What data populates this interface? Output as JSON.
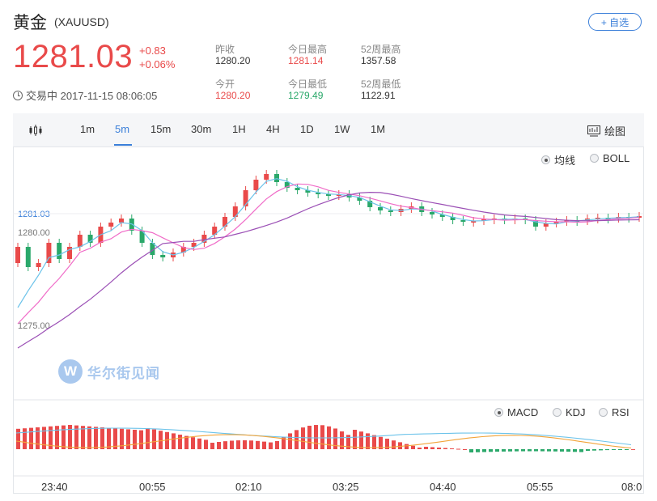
{
  "header": {
    "title": "黄金",
    "code": "(XAUUSD)",
    "follow_label": "+ 自选"
  },
  "quote": {
    "price": "1281.03",
    "change": "+0.83",
    "change_pct": "+0.06%",
    "status": "交易中 2017-11-15 08:06:05"
  },
  "stats": {
    "prev_close_label": "昨收",
    "prev_close": "1280.20",
    "high_label": "今日最高",
    "high": "1281.14",
    "w52_high_label": "52周最高",
    "w52_high": "1357.58",
    "open_label": "今开",
    "open": "1280.20",
    "low_label": "今日最低",
    "low": "1279.49",
    "w52_low_label": "52周最低",
    "w52_low": "1122.91"
  },
  "toolbar": {
    "tabs": [
      "1m",
      "5m",
      "15m",
      "30m",
      "1H",
      "4H",
      "1D",
      "1W",
      "1M"
    ],
    "active_tab": "5m",
    "draw_label": "绘图"
  },
  "main_chart": {
    "overlays": [
      "均线",
      "BOLL"
    ],
    "selected_overlay": "均线",
    "y_labels": [
      "1281.03",
      "1280.00",
      "1275.00"
    ]
  },
  "indicator_chart": {
    "options": [
      "MACD",
      "KDJ",
      "RSI"
    ],
    "selected": "MACD"
  },
  "watermark": {
    "text": "华尔街见闻",
    "logo_letter": "W"
  },
  "chart_data": {
    "type": "candlestick",
    "x_tick_labels": [
      "23:40",
      "00:55",
      "02:10",
      "03:25",
      "04:40",
      "05:55",
      "08:0"
    ],
    "y_ticks": [
      1281.03,
      1280.0,
      1275.0
    ],
    "current_price": 1281.03,
    "colors": {
      "up": "#e94a4a",
      "down": "#2aa86a",
      "ma_short": "#6cc3ea",
      "ma_mid": "#f06cc8",
      "ma_long": "#9b4fb5",
      "macd_dif": "#6cc3ea",
      "macd_dea": "#f2a43a"
    }
  }
}
